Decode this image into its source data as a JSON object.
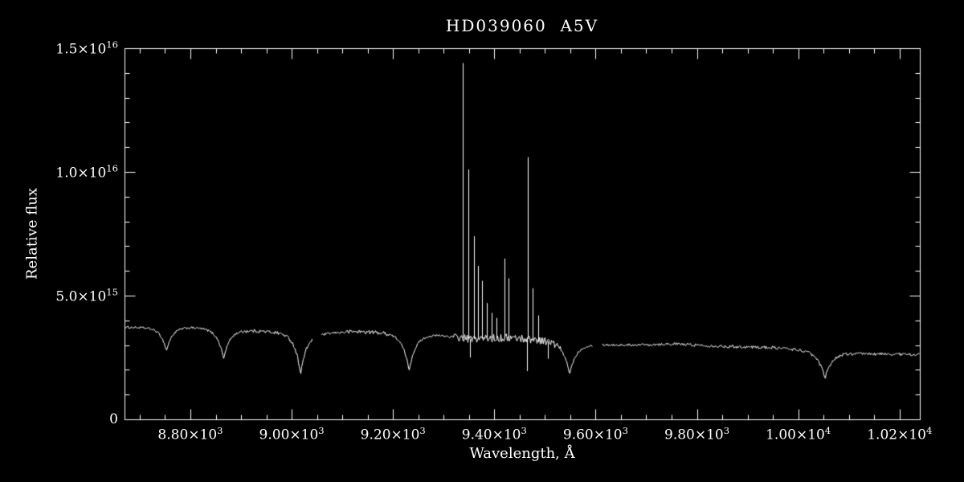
{
  "chart_data": {
    "type": "line",
    "title": "HD039060  A5V",
    "xlabel": "Wavelength, Å",
    "ylabel": "Relative flux",
    "line_color": "#ffffff",
    "background_color": "#000000",
    "grid": false,
    "xlim": [
      8670,
      10240
    ],
    "ylim": [
      0,
      1.5e+16
    ],
    "x_ticks": [
      {
        "value": 8800,
        "label": "8.80×10^3"
      },
      {
        "value": 9000,
        "label": "9.00×10^3"
      },
      {
        "value": 9200,
        "label": "9.20×10^3"
      },
      {
        "value": 9400,
        "label": "9.40×10^3"
      },
      {
        "value": 9600,
        "label": "9.60×10^3"
      },
      {
        "value": 9800,
        "label": "9.80×10^3"
      },
      {
        "value": 10000,
        "label": "1.00×10^4"
      },
      {
        "value": 10200,
        "label": "1.02×10^4"
      }
    ],
    "y_ticks": [
      {
        "value": 0,
        "label": "0"
      },
      {
        "value": 5000000000000000.0,
        "label": "5.0×10^15"
      },
      {
        "value": 1e+16,
        "label": "1.0×10^16"
      },
      {
        "value": 1.5e+16,
        "label": "1.5×10^16"
      }
    ],
    "x_minor_step": 50,
    "y_minor_step": 1000000000000000.0,
    "continuum": [
      [
        8670,
        3720000000000000.0
      ],
      [
        8740,
        3700000000000000.0
      ],
      [
        8800,
        3720000000000000.0
      ],
      [
        8860,
        3650000000000000.0
      ],
      [
        8950,
        3550000000000000.0
      ],
      [
        9050,
        3450000000000000.0
      ],
      [
        9120,
        3550000000000000.0
      ],
      [
        9200,
        3500000000000000.0
      ],
      [
        9290,
        3400000000000000.0
      ],
      [
        9350,
        3250000000000000.0
      ],
      [
        9430,
        3300000000000000.0
      ],
      [
        9500,
        3200000000000000.0
      ],
      [
        9560,
        3050000000000000.0
      ],
      [
        9650,
        3000000000000000.0
      ],
      [
        9750,
        3050000000000000.0
      ],
      [
        9850,
        2950000000000000.0
      ],
      [
        9950,
        2900000000000000.0
      ],
      [
        10050,
        2750000000000000.0
      ],
      [
        10120,
        2650000000000000.0
      ],
      [
        10240,
        2620000000000000.0
      ]
    ],
    "absorption_lines": [
      {
        "center": 8752,
        "depth": 950000000000000.0,
        "width": 11
      },
      {
        "center": 8865,
        "depth": 1200000000000000.0,
        "width": 12
      },
      {
        "center": 9017,
        "depth": 1650000000000000.0,
        "width": 12
      },
      {
        "center": 9231,
        "depth": 1500000000000000.0,
        "width": 13
      },
      {
        "center": 9548,
        "depth": 1250000000000000.0,
        "width": 13
      },
      {
        "center": 10052,
        "depth": 1100000000000000.0,
        "width": 14
      }
    ],
    "emission_spikes": [
      {
        "center": 9338,
        "peak": 1.44e+16
      },
      {
        "center": 9348,
        "peak": 1.01e+16
      },
      {
        "center": 9360,
        "peak": 7400000000000000.0
      },
      {
        "center": 9367,
        "peak": 6200000000000000.0
      },
      {
        "center": 9376,
        "peak": 5600000000000000.0
      },
      {
        "center": 9386,
        "peak": 4700000000000000.0
      },
      {
        "center": 9394,
        "peak": 4300000000000000.0
      },
      {
        "center": 9405,
        "peak": 4100000000000000.0
      },
      {
        "center": 9420,
        "peak": 6500000000000000.0
      },
      {
        "center": 9428,
        "peak": 5700000000000000.0
      },
      {
        "center": 9466,
        "peak": 1.06e+16
      },
      {
        "center": 9476,
        "peak": 5300000000000000.0
      },
      {
        "center": 9487,
        "peak": 4200000000000000.0
      }
    ],
    "downward_spikes": [
      {
        "center": 9352,
        "min": 2500000000000000.0
      },
      {
        "center": 9464,
        "min": 1950000000000000.0
      },
      {
        "center": 9505,
        "min": 2450000000000000.0
      }
    ],
    "gaps": [
      [
        9040,
        9058
      ],
      [
        9594,
        9612
      ]
    ],
    "noise": {
      "base": 45000000000000.0,
      "bands": [
        [
          8900,
          9060,
          70000000000000.0
        ],
        [
          9100,
          9200,
          80000000000000.0
        ],
        [
          9320,
          9530,
          160000000000000.0
        ],
        [
          9700,
          10240,
          60000000000000.0
        ]
      ]
    }
  }
}
